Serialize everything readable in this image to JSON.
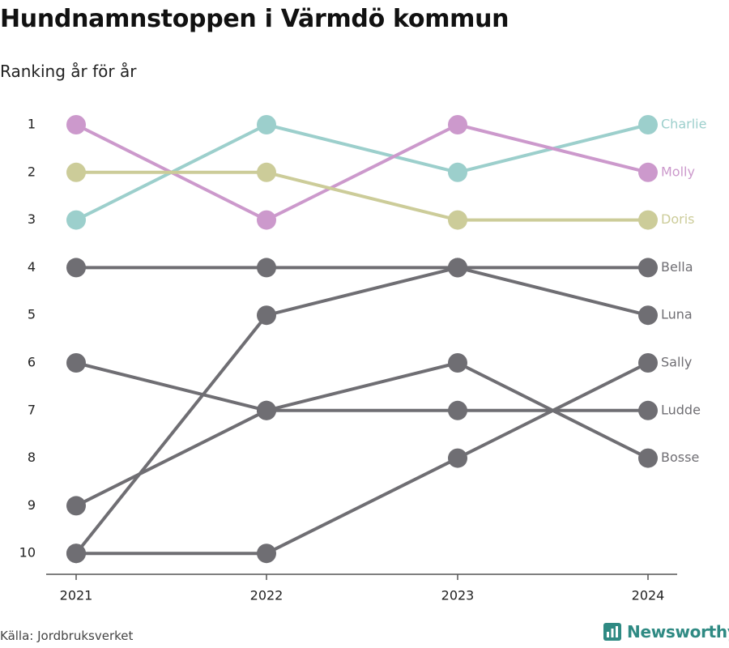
{
  "title": "Hundnamnstoppen i Värmdö kommun",
  "subtitle": "Ranking år för år",
  "source": "Källa: Jordbruksverket",
  "brand": {
    "name": "Newsworthy",
    "icon": "newsworthy-logo-icon",
    "color": "#2f8a83"
  },
  "chart_data": {
    "type": "line",
    "subtype": "bump",
    "x": [
      "2021",
      "2022",
      "2023",
      "2024"
    ],
    "y_ticks": [
      1,
      2,
      3,
      4,
      5,
      6,
      7,
      8,
      9,
      10
    ],
    "ylim": [
      1,
      10
    ],
    "y_inverted": true,
    "grid": false,
    "legend": "end-labels",
    "series": [
      {
        "name": "Charlie",
        "color": "#9ccfcc",
        "values": [
          3,
          1,
          2,
          1
        ]
      },
      {
        "name": "Molly",
        "color": "#cc99cc",
        "values": [
          1,
          3,
          1,
          2
        ]
      },
      {
        "name": "Doris",
        "color": "#cccc99",
        "values": [
          2,
          2,
          3,
          3
        ]
      },
      {
        "name": "Bella",
        "color": "#6f6e73",
        "values": [
          4,
          4,
          4,
          4
        ]
      },
      {
        "name": "Luna",
        "color": "#6f6e73",
        "values": [
          10,
          5,
          4,
          5
        ]
      },
      {
        "name": "Sally",
        "color": "#6f6e73",
        "values": [
          10,
          10,
          8,
          6
        ]
      },
      {
        "name": "Ludde",
        "color": "#6f6e73",
        "values": [
          9,
          7,
          7,
          7
        ]
      },
      {
        "name": "Bosse",
        "color": "#6f6e73",
        "values": [
          6,
          7,
          6,
          8
        ]
      }
    ]
  }
}
